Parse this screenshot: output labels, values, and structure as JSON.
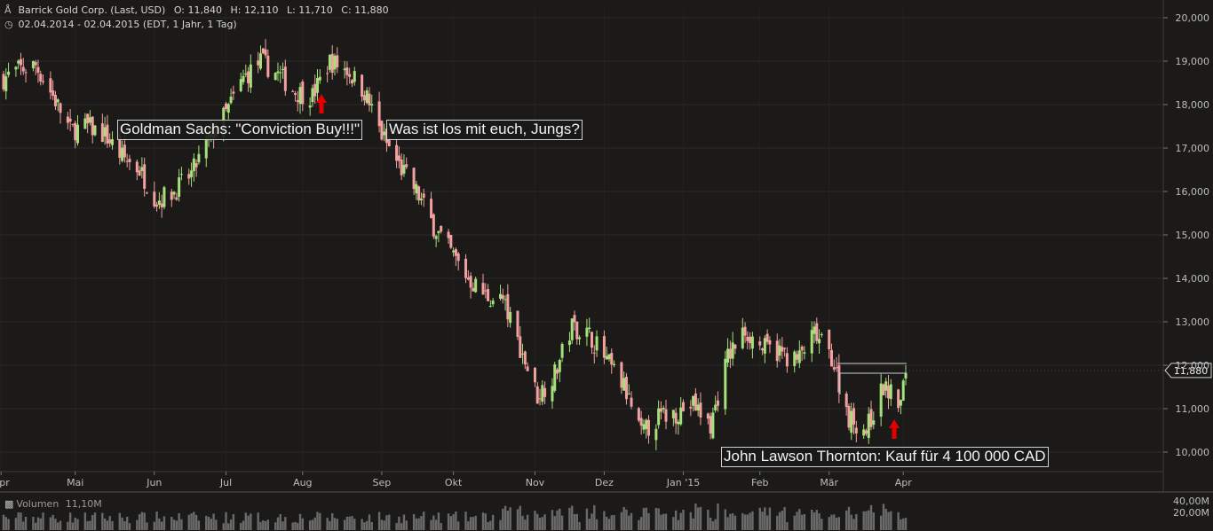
{
  "header": {
    "instrument_icon": "candlestick-chart-icon",
    "instrument": "Barrick Gold Corp. (Last, USD)",
    "open": "O: 11,840",
    "high": "H: 12,110",
    "low": "L: 11,710",
    "close": "C: 11,880",
    "clock_icon": "clock-icon",
    "range": "02.04.2014 - 02.04.2015 (EDT, 1 Jahr, 1 Tag)"
  },
  "annotations": {
    "goldman": "Goldman Sachs: \"Conviction Buy!!!\"",
    "jungs": "Was ist los mit euch, Jungs?",
    "thornton": "John Lawson Thornton: Kauf für 4 100 000 CAD"
  },
  "last_price_label": "11,880",
  "volume": {
    "icon": "volume-bars-icon",
    "label": "Volumen",
    "value": "11,10M",
    "axis_ticks": [
      "40,00M",
      "20,00M"
    ]
  },
  "colors": {
    "background": "#1b1a19",
    "up": "#a6e07a",
    "down": "#f2a0a0",
    "grid": "#2c2b29",
    "arrow": "#e50000",
    "volume": "#6a6a6a"
  },
  "chart_data": {
    "type": "candlestick",
    "title": "Barrick Gold Corp. (Last, USD)",
    "x_tick_labels": [
      "Apr",
      "Mai",
      "Jun",
      "Jul",
      "Aug",
      "Sep",
      "Okt",
      "Nov",
      "Dez",
      "Jan '15",
      "Feb",
      "Mär",
      "Apr"
    ],
    "y_tick_labels": [
      "20,000",
      "19,000",
      "18,000",
      "17,000",
      "16,000",
      "15,000",
      "14,000",
      "13,000",
      "12,000",
      "11,000",
      "10,000"
    ],
    "ylim": [
      9.8,
      20.2
    ],
    "grid": true,
    "last_value": 11.88,
    "ohlc_last": {
      "open": 11.84,
      "high": 12.11,
      "low": 11.71,
      "close": 11.88
    },
    "close_path": [
      [
        "2014-04-02",
        18.6
      ],
      [
        "2014-04-08",
        18.8
      ],
      [
        "2014-04-15",
        18.9
      ],
      [
        "2014-04-22",
        18.2
      ],
      [
        "2014-04-29",
        17.4
      ],
      [
        "2014-05-06",
        17.5
      ],
      [
        "2014-05-13",
        17.3
      ],
      [
        "2014-05-20",
        16.8
      ],
      [
        "2014-05-27",
        16.5
      ],
      [
        "2014-06-03",
        15.8
      ],
      [
        "2014-06-10",
        16.0
      ],
      [
        "2014-06-17",
        16.4
      ],
      [
        "2014-06-24",
        17.2
      ],
      [
        "2014-07-01",
        17.8
      ],
      [
        "2014-07-08",
        18.6
      ],
      [
        "2014-07-15",
        19.0
      ],
      [
        "2014-07-22",
        18.7
      ],
      [
        "2014-07-29",
        18.3
      ],
      [
        "2014-08-05",
        18.2
      ],
      [
        "2014-08-12",
        19.0
      ],
      [
        "2014-08-19",
        18.8
      ],
      [
        "2014-08-26",
        18.3
      ],
      [
        "2014-09-02",
        17.3
      ],
      [
        "2014-09-09",
        16.6
      ],
      [
        "2014-09-16",
        16.0
      ],
      [
        "2014-09-23",
        15.2
      ],
      [
        "2014-09-30",
        14.6
      ],
      [
        "2014-10-07",
        14.0
      ],
      [
        "2014-10-14",
        13.6
      ],
      [
        "2014-10-21",
        13.5
      ],
      [
        "2014-10-28",
        12.4
      ],
      [
        "2014-11-04",
        11.3
      ],
      [
        "2014-11-11",
        11.8
      ],
      [
        "2014-11-18",
        12.9
      ],
      [
        "2014-11-25",
        12.7
      ],
      [
        "2014-12-02",
        12.1
      ],
      [
        "2014-12-09",
        11.5
      ],
      [
        "2014-12-16",
        10.4
      ],
      [
        "2014-12-23",
        10.8
      ],
      [
        "2014-12-30",
        10.9
      ],
      [
        "2015-01-06",
        11.1
      ],
      [
        "2015-01-13",
        10.6
      ],
      [
        "2015-01-20",
        12.2
      ],
      [
        "2015-01-27",
        12.8
      ],
      [
        "2015-02-03",
        12.4
      ],
      [
        "2015-02-10",
        12.3
      ],
      [
        "2015-02-17",
        12.1
      ],
      [
        "2015-02-24",
        12.7
      ],
      [
        "2015-03-03",
        12.2
      ],
      [
        "2015-03-10",
        10.8
      ],
      [
        "2015-03-17",
        10.5
      ],
      [
        "2015-03-24",
        11.5
      ],
      [
        "2015-03-31",
        11.1
      ],
      [
        "2015-04-02",
        11.88
      ]
    ]
  }
}
